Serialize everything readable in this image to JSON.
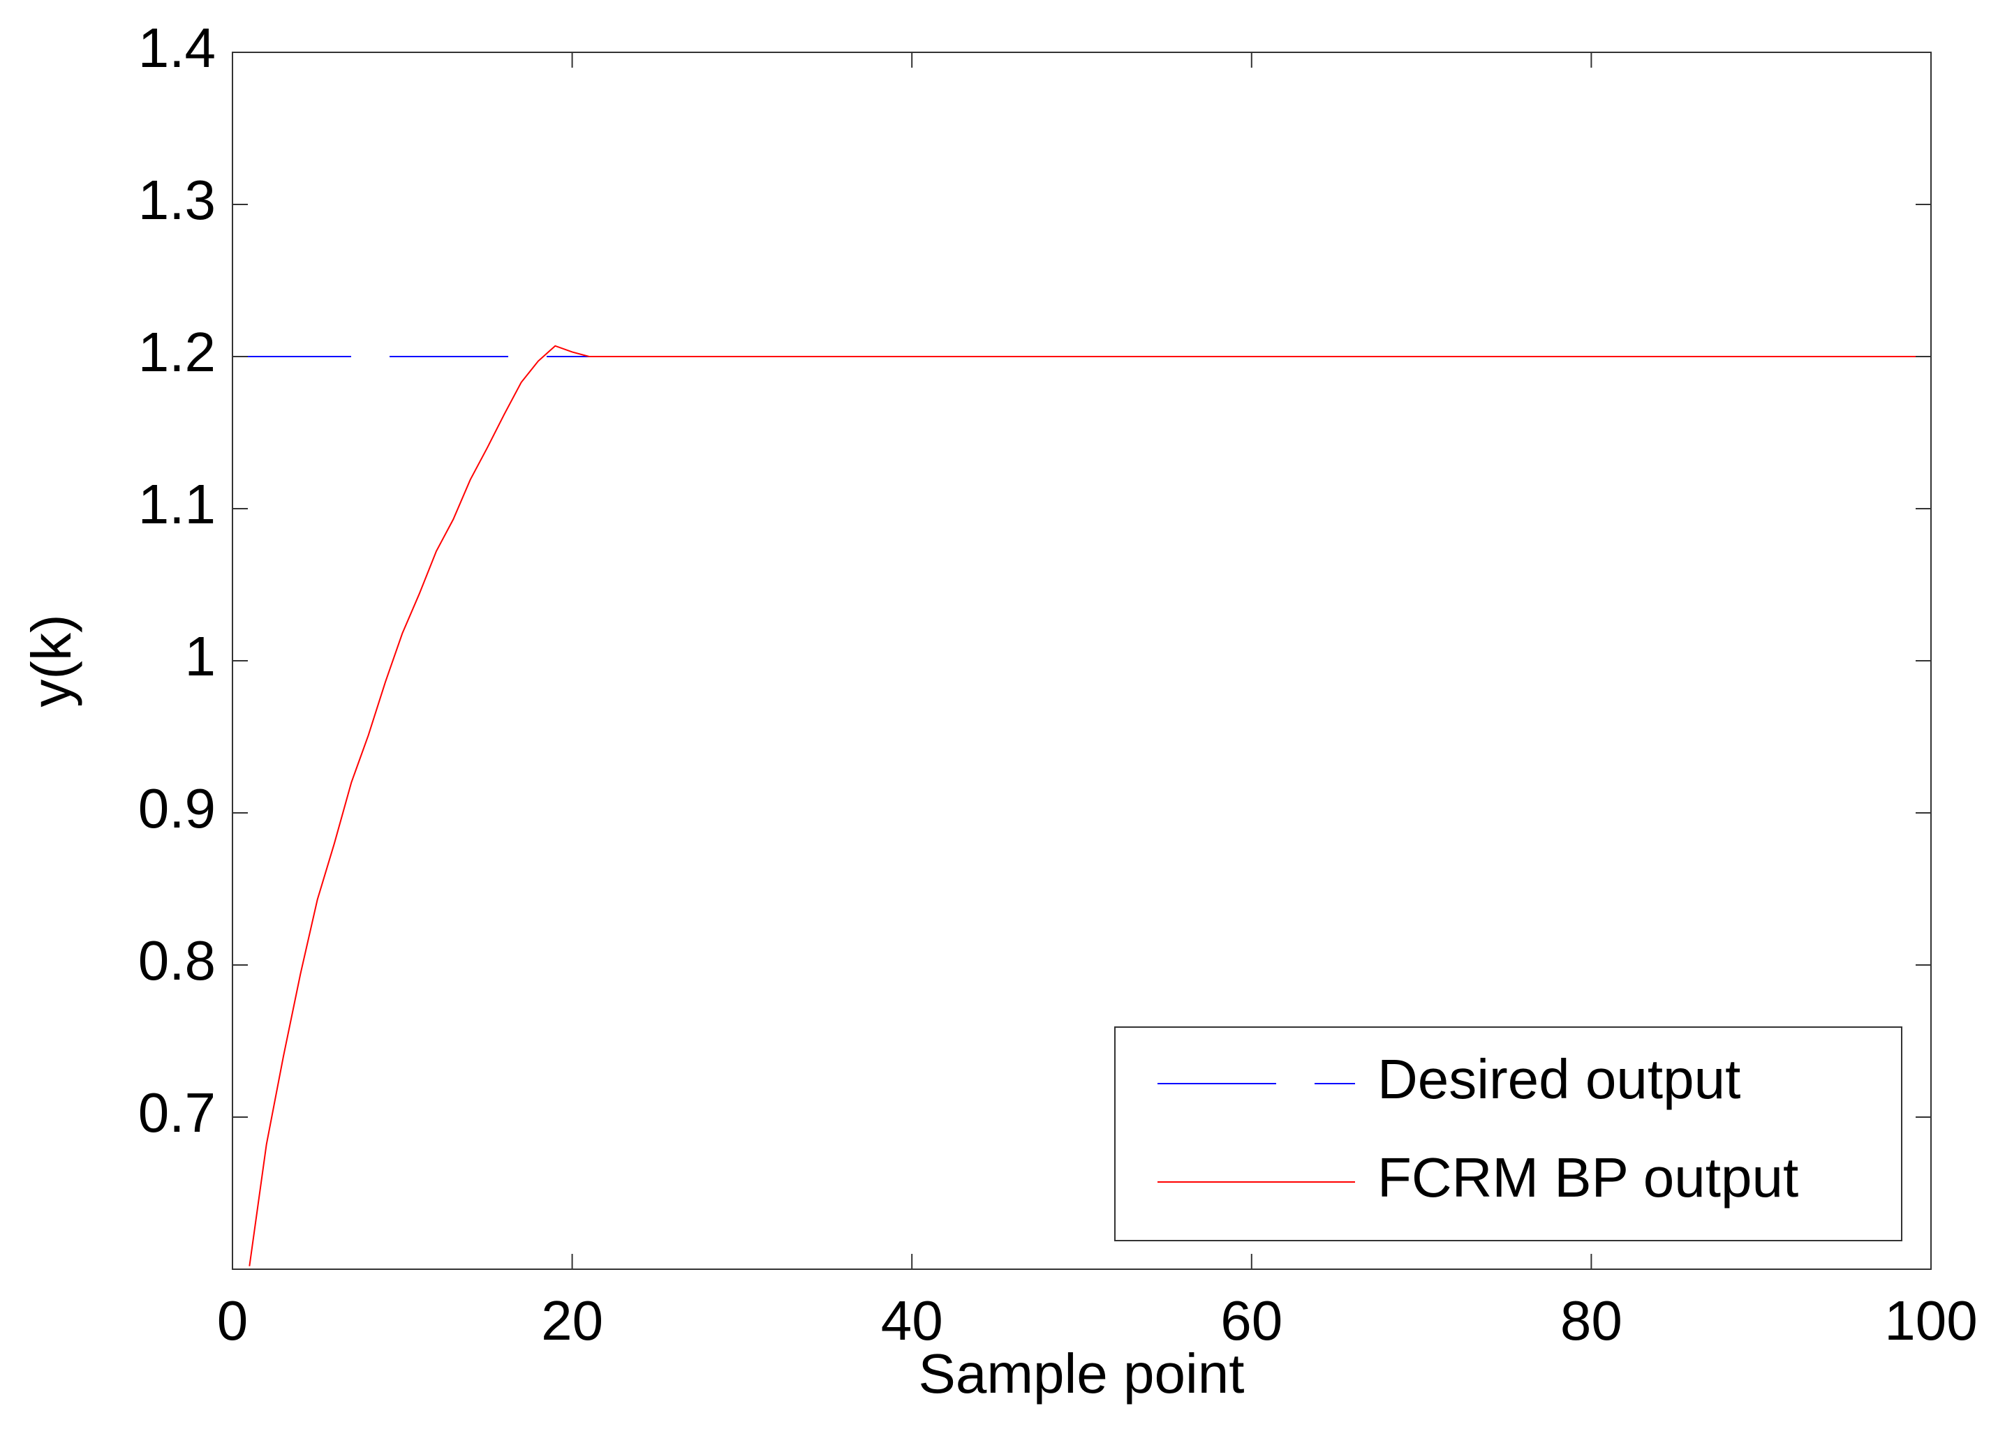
{
  "chart_data": {
    "type": "line",
    "xlabel": "Sample point",
    "ylabel": "y(k)",
    "xlim": [
      0,
      100
    ],
    "ylim": [
      0.6,
      1.4
    ],
    "xticks": [
      0,
      20,
      40,
      60,
      80,
      100
    ],
    "yticks": [
      0.7,
      0.8,
      0.9,
      1,
      1.1,
      1.2,
      1.3,
      1.4
    ],
    "legend": "lower right",
    "series": [
      {
        "name": "Desired output",
        "color": "#0000ff",
        "dashed": true,
        "x": [
          0,
          100
        ],
        "values": [
          1.2,
          1.2
        ]
      },
      {
        "name": "FCRM BP output",
        "color": "#ff0000",
        "dashed": false,
        "x": [
          1,
          2,
          3,
          4,
          5,
          6,
          7,
          8,
          9,
          10,
          11,
          12,
          13,
          14,
          15,
          16,
          17,
          18,
          19,
          20,
          21,
          100
        ],
        "values": [
          0.602,
          0.682,
          0.74,
          0.794,
          0.843,
          0.88,
          0.92,
          0.951,
          0.986,
          1.018,
          1.044,
          1.072,
          1.093,
          1.119,
          1.14,
          1.162,
          1.183,
          1.197,
          1.207,
          1.203,
          1.2,
          1.2
        ]
      }
    ]
  }
}
